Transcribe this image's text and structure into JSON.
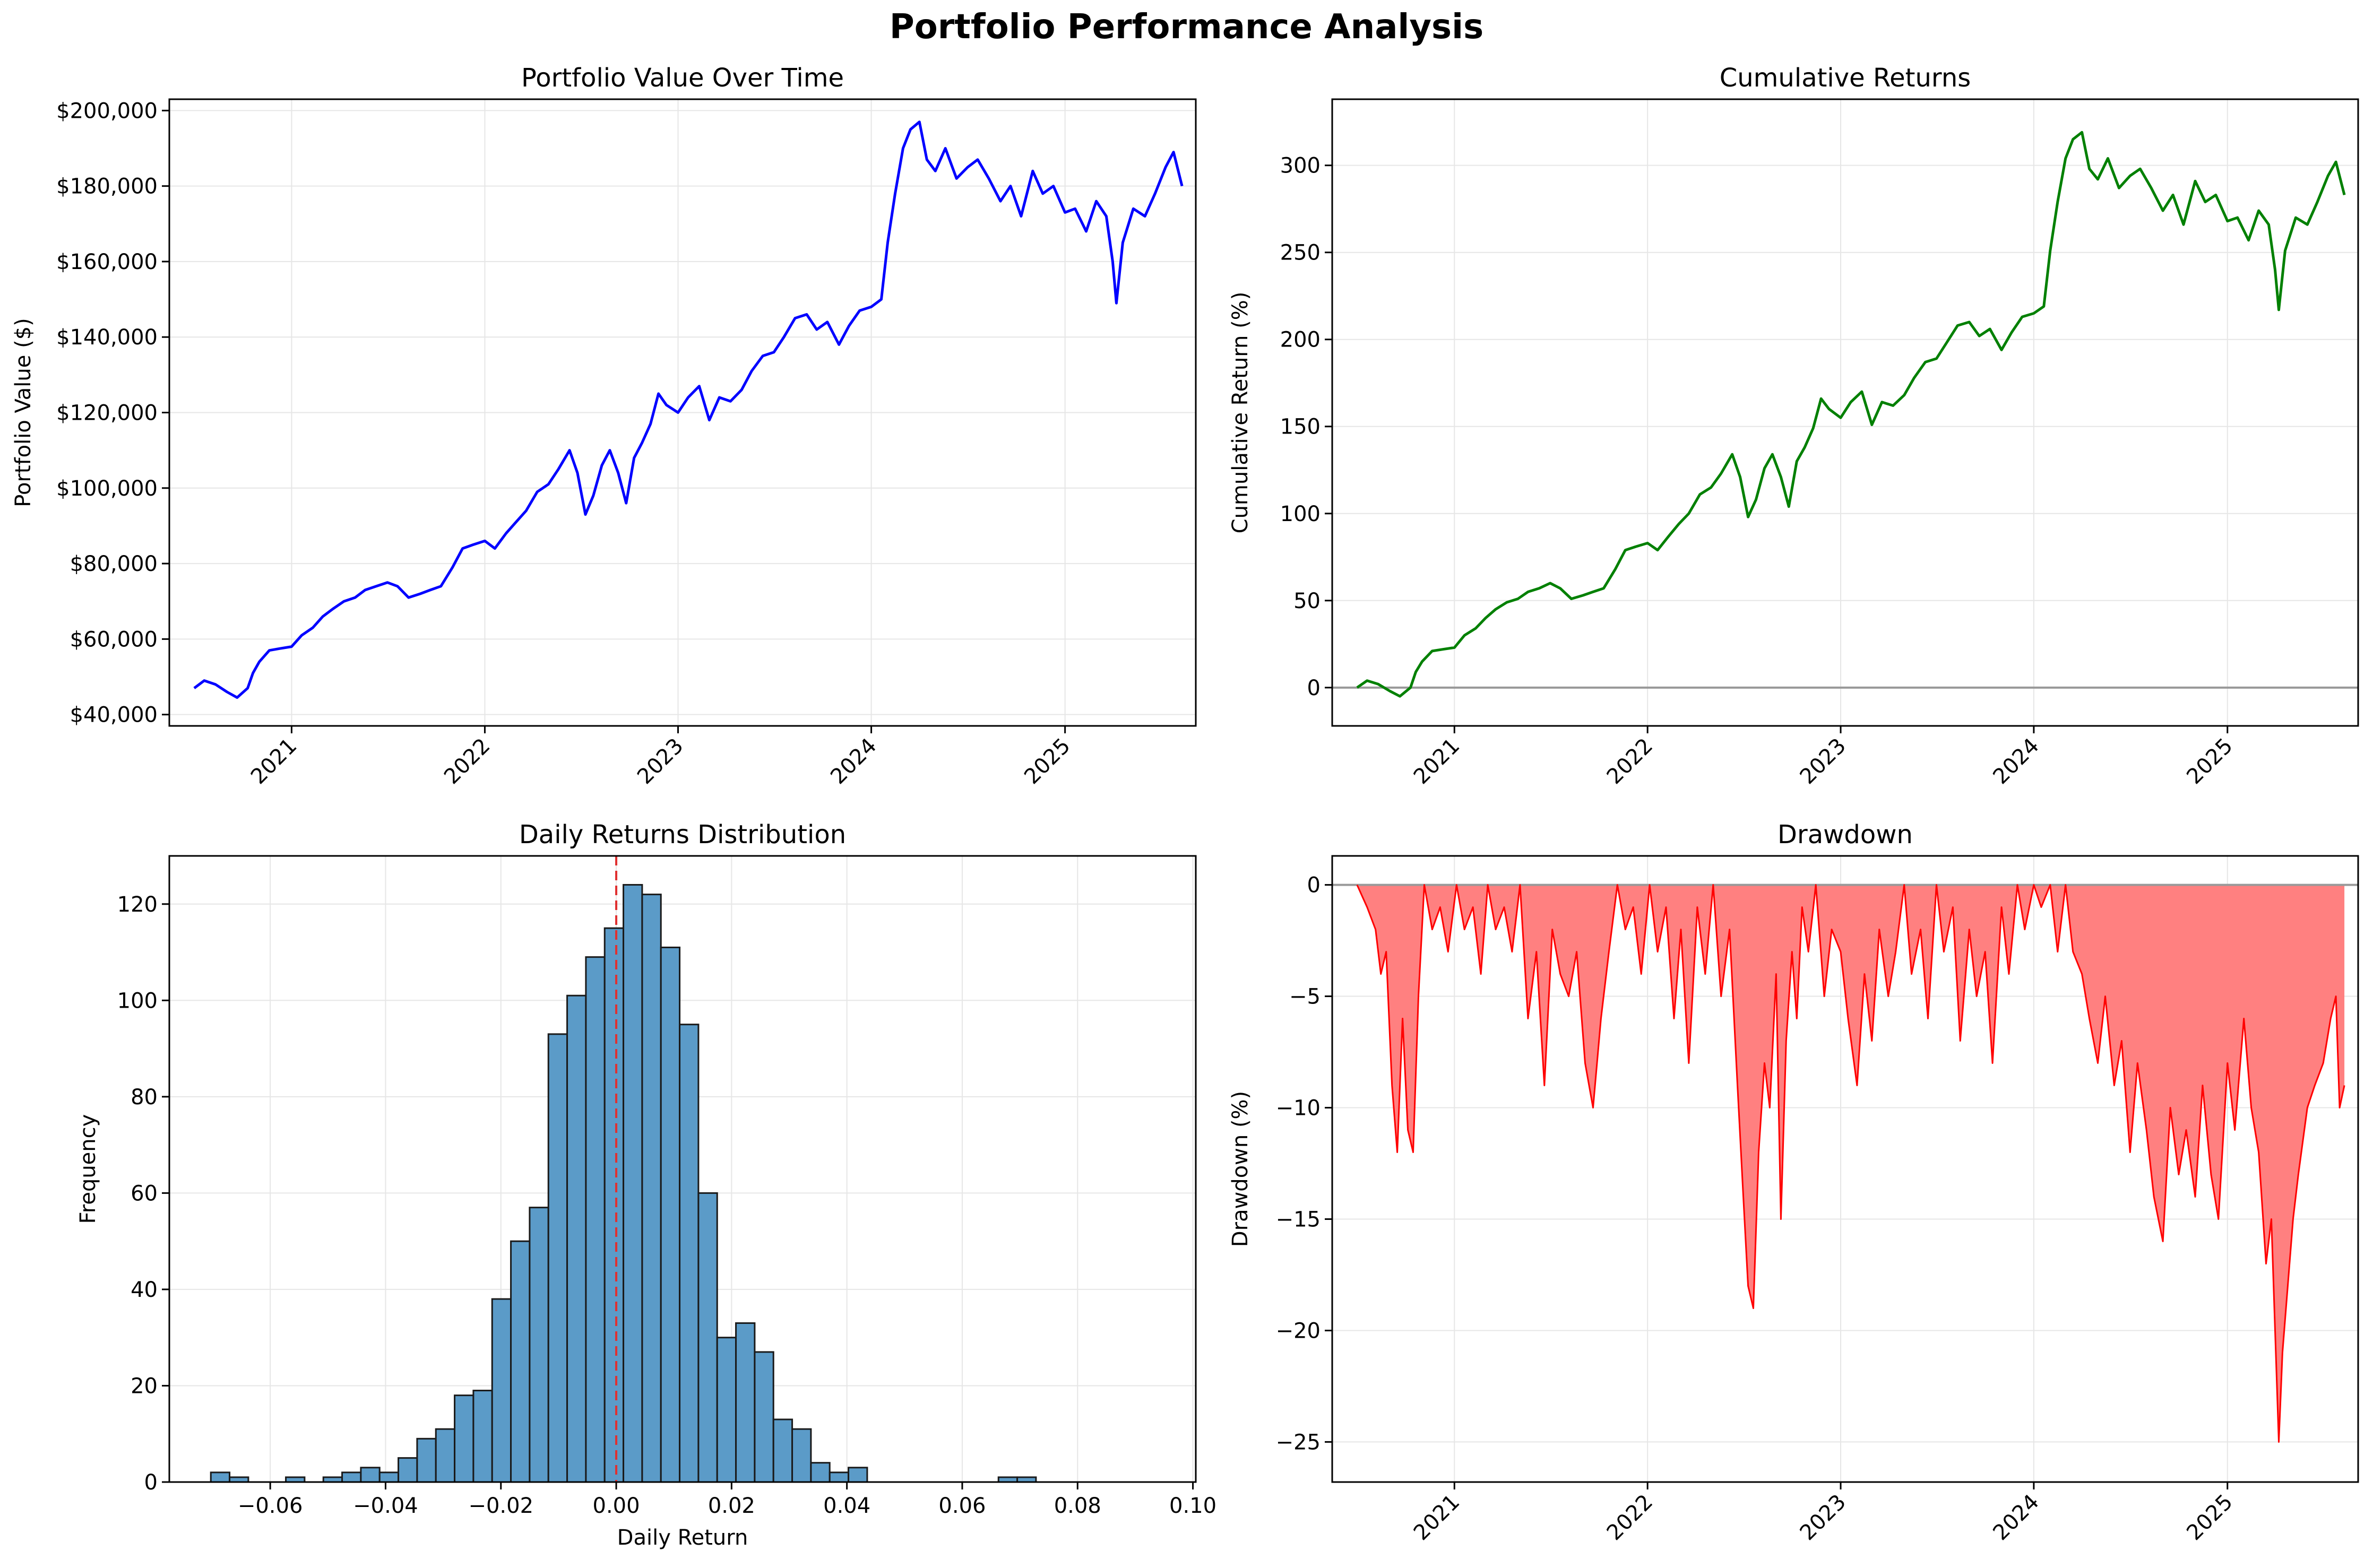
{
  "suptitle": "Portfolio Performance Analysis",
  "chart_data": [
    {
      "id": "value",
      "type": "line",
      "title": "Portfolio Value Over Time",
      "xlabel": "",
      "ylabel": "Portfolio Value ($)",
      "xlim": [
        "2020-05-15",
        "2025-09-05"
      ],
      "ylim": [
        37000,
        203000
      ],
      "yticks": [
        40000,
        60000,
        80000,
        100000,
        120000,
        140000,
        160000,
        180000,
        200000
      ],
      "ytick_labels": [
        "$40,000",
        "$60,000",
        "$80,000",
        "$100,000",
        "$120,000",
        "$140,000",
        "$160,000",
        "$180,000",
        "$200,000"
      ],
      "xticks": [
        "2021-01-01",
        "2022-01-01",
        "2023-01-01",
        "2024-01-01",
        "2025-01-01"
      ],
      "xtick_labels": [
        "2021",
        "2022",
        "2023",
        "2024",
        "2025"
      ],
      "grid": true,
      "color": "#0000ff",
      "series": [
        {
          "x": [
            "2020-07-01",
            "2020-07-20",
            "2020-08-10",
            "2020-09-01",
            "2020-09-20",
            "2020-10-10",
            "2020-10-20",
            "2020-11-01",
            "2020-11-20",
            "2020-12-10",
            "2021-01-01",
            "2021-01-20",
            "2021-02-10",
            "2021-03-01",
            "2021-03-20",
            "2021-04-10",
            "2021-05-01",
            "2021-05-20",
            "2021-06-10",
            "2021-07-01",
            "2021-07-20",
            "2021-08-10",
            "2021-09-01",
            "2021-09-20",
            "2021-10-10",
            "2021-11-01",
            "2021-11-20",
            "2021-12-10",
            "2022-01-01",
            "2022-01-20",
            "2022-02-10",
            "2022-03-01",
            "2022-03-20",
            "2022-04-10",
            "2022-05-01",
            "2022-05-20",
            "2022-06-10",
            "2022-06-25",
            "2022-07-10",
            "2022-07-25",
            "2022-08-10",
            "2022-08-25",
            "2022-09-10",
            "2022-09-25",
            "2022-10-10",
            "2022-10-25",
            "2022-11-10",
            "2022-11-25",
            "2022-12-10",
            "2023-01-01",
            "2023-01-20",
            "2023-02-10",
            "2023-03-01",
            "2023-03-20",
            "2023-04-10",
            "2023-05-01",
            "2023-05-20",
            "2023-06-10",
            "2023-07-01",
            "2023-07-20",
            "2023-08-10",
            "2023-09-01",
            "2023-09-20",
            "2023-10-10",
            "2023-11-01",
            "2023-11-20",
            "2023-12-10",
            "2024-01-01",
            "2024-01-20",
            "2024-02-01",
            "2024-02-15",
            "2024-03-01",
            "2024-03-15",
            "2024-04-01",
            "2024-04-15",
            "2024-05-01",
            "2024-05-20",
            "2024-06-10",
            "2024-07-01",
            "2024-07-20",
            "2024-08-10",
            "2024-09-01",
            "2024-09-20",
            "2024-10-10",
            "2024-11-01",
            "2024-11-20",
            "2024-12-10",
            "2025-01-01",
            "2025-01-20",
            "2025-02-10",
            "2025-03-01",
            "2025-03-20",
            "2025-04-01",
            "2025-04-08",
            "2025-04-20",
            "2025-05-10",
            "2025-06-01",
            "2025-06-20",
            "2025-07-10",
            "2025-07-25",
            "2025-08-10"
          ],
          "y": [
            47000,
            49000,
            48000,
            46000,
            44500,
            47000,
            51000,
            54000,
            57000,
            57500,
            58000,
            61000,
            63000,
            66000,
            68000,
            70000,
            71000,
            73000,
            74000,
            75000,
            74000,
            71000,
            72000,
            73000,
            74000,
            79000,
            84000,
            85000,
            86000,
            84000,
            88000,
            91000,
            94000,
            99000,
            101000,
            105000,
            110000,
            104000,
            93000,
            98000,
            106000,
            110000,
            104000,
            96000,
            108000,
            112000,
            117000,
            125000,
            122000,
            120000,
            124000,
            127000,
            118000,
            124000,
            123000,
            126000,
            131000,
            135000,
            136000,
            140000,
            145000,
            146000,
            142000,
            144000,
            138000,
            143000,
            147000,
            148000,
            150000,
            165000,
            178000,
            190000,
            195000,
            197000,
            187000,
            184000,
            190000,
            182000,
            185000,
            187000,
            182000,
            176000,
            180000,
            172000,
            184000,
            178000,
            180000,
            173000,
            174000,
            168000,
            176000,
            172000,
            160000,
            149000,
            165000,
            174000,
            172000,
            178000,
            185000,
            189000,
            180000
          ]
        }
      ]
    },
    {
      "id": "cumret",
      "type": "line",
      "title": "Cumulative Returns",
      "xlabel": "",
      "ylabel": "Cumulative Return (%)",
      "xlim": [
        "2020-05-15",
        "2025-09-05"
      ],
      "ylim": [
        -22,
        338
      ],
      "yticks": [
        0,
        50,
        100,
        150,
        200,
        250,
        300
      ],
      "ytick_labels": [
        "0",
        "50",
        "100",
        "150",
        "200",
        "250",
        "300"
      ],
      "xticks": [
        "2021-01-01",
        "2022-01-01",
        "2023-01-01",
        "2024-01-01",
        "2025-01-01"
      ],
      "xtick_labels": [
        "2021",
        "2022",
        "2023",
        "2024",
        "2025"
      ],
      "grid": true,
      "color": "#008000",
      "hline": {
        "y": 0,
        "color": "#999999"
      },
      "series": [
        {
          "x": [
            "2020-07-01",
            "2020-07-20",
            "2020-08-10",
            "2020-09-01",
            "2020-09-20",
            "2020-10-10",
            "2020-10-20",
            "2020-11-01",
            "2020-11-20",
            "2020-12-10",
            "2021-01-01",
            "2021-01-20",
            "2021-02-10",
            "2021-03-01",
            "2021-03-20",
            "2021-04-10",
            "2021-05-01",
            "2021-05-20",
            "2021-06-10",
            "2021-07-01",
            "2021-07-20",
            "2021-08-10",
            "2021-09-01",
            "2021-09-20",
            "2021-10-10",
            "2021-11-01",
            "2021-11-20",
            "2021-12-10",
            "2022-01-01",
            "2022-01-20",
            "2022-02-10",
            "2022-03-01",
            "2022-03-20",
            "2022-04-10",
            "2022-05-01",
            "2022-05-20",
            "2022-06-10",
            "2022-06-25",
            "2022-07-10",
            "2022-07-25",
            "2022-08-10",
            "2022-08-25",
            "2022-09-10",
            "2022-09-25",
            "2022-10-10",
            "2022-10-25",
            "2022-11-10",
            "2022-11-25",
            "2022-12-10",
            "2023-01-01",
            "2023-01-20",
            "2023-02-10",
            "2023-03-01",
            "2023-03-20",
            "2023-04-10",
            "2023-05-01",
            "2023-05-20",
            "2023-06-10",
            "2023-07-01",
            "2023-07-20",
            "2023-08-10",
            "2023-09-01",
            "2023-09-20",
            "2023-10-10",
            "2023-11-01",
            "2023-11-20",
            "2023-12-10",
            "2024-01-01",
            "2024-01-20",
            "2024-02-01",
            "2024-02-15",
            "2024-03-01",
            "2024-03-15",
            "2024-04-01",
            "2024-04-15",
            "2024-05-01",
            "2024-05-20",
            "2024-06-10",
            "2024-07-01",
            "2024-07-20",
            "2024-08-10",
            "2024-09-01",
            "2024-09-20",
            "2024-10-10",
            "2024-11-01",
            "2024-11-20",
            "2024-12-10",
            "2025-01-01",
            "2025-01-20",
            "2025-02-10",
            "2025-03-01",
            "2025-03-20",
            "2025-04-01",
            "2025-04-08",
            "2025-04-20",
            "2025-05-10",
            "2025-06-01",
            "2025-06-20",
            "2025-07-10",
            "2025-07-25",
            "2025-08-10"
          ],
          "y": [
            0,
            4,
            2,
            -2,
            -5,
            0,
            9,
            15,
            21,
            22,
            23,
            30,
            34,
            40,
            45,
            49,
            51,
            55,
            57,
            60,
            57,
            51,
            53,
            55,
            57,
            68,
            79,
            81,
            83,
            79,
            87,
            94,
            100,
            111,
            115,
            123,
            134,
            121,
            98,
            108,
            126,
            134,
            121,
            104,
            130,
            138,
            149,
            166,
            160,
            155,
            164,
            170,
            151,
            164,
            162,
            168,
            178,
            187,
            189,
            198,
            208,
            210,
            202,
            206,
            194,
            204,
            213,
            215,
            219,
            251,
            279,
            304,
            315,
            319,
            298,
            292,
            304,
            287,
            294,
            298,
            287,
            274,
            283,
            266,
            291,
            279,
            283,
            268,
            270,
            257,
            274,
            266,
            240,
            217,
            251,
            270,
            266,
            279,
            294,
            302,
            283
          ]
        }
      ]
    },
    {
      "id": "hist",
      "type": "bar",
      "title": "Daily Returns Distribution",
      "xlabel": "Daily Return",
      "ylabel": "Frequency",
      "xlim": [
        -0.0775,
        0.1005
      ],
      "ylim": [
        0,
        130
      ],
      "xticks": [
        -0.06,
        -0.04,
        -0.02,
        0.0,
        0.02,
        0.04,
        0.06,
        0.08,
        0.1
      ],
      "xtick_labels": [
        "−0.06",
        "−0.04",
        "−0.02",
        "0.00",
        "0.02",
        "0.04",
        "0.06",
        "0.08",
        "0.10"
      ],
      "yticks": [
        0,
        20,
        40,
        60,
        80,
        100,
        120
      ],
      "ytick_labels": [
        "0",
        "20",
        "40",
        "60",
        "80",
        "100",
        "120"
      ],
      "grid": true,
      "color": "#5b9bc8",
      "edgecolor": "#1a1a1a",
      "vline": {
        "x": 0.0,
        "color": "#e03030",
        "style": "dashed"
      },
      "bin_start": -0.0703,
      "bin_width": 0.003252,
      "values": [
        2,
        1,
        0,
        0,
        1,
        0,
        1,
        2,
        3,
        2,
        5,
        9,
        11,
        18,
        19,
        38,
        50,
        57,
        93,
        101,
        109,
        115,
        124,
        122,
        111,
        95,
        60,
        30,
        33,
        27,
        13,
        11,
        4,
        2,
        3,
        0,
        0,
        0,
        0,
        0,
        0,
        0,
        1,
        1,
        0,
        0,
        0,
        0,
        0,
        0
      ]
    },
    {
      "id": "drawdown",
      "type": "area",
      "title": "Drawdown",
      "xlabel": "",
      "ylabel": "Drawdown (%)",
      "xlim": [
        "2020-05-15",
        "2025-09-05"
      ],
      "ylim": [
        -26.8,
        1.3
      ],
      "yticks": [
        0,
        -5,
        -10,
        -15,
        -20,
        -25
      ],
      "ytick_labels": [
        "0",
        "−5",
        "−10",
        "−15",
        "−20",
        "−25"
      ],
      "xticks": [
        "2021-01-01",
        "2022-01-01",
        "2023-01-01",
        "2024-01-01",
        "2025-01-01"
      ],
      "xtick_labels": [
        "2021",
        "2022",
        "2023",
        "2024",
        "2025"
      ],
      "grid": true,
      "color": "#ff0000",
      "fill": "#ff8080",
      "hline": {
        "y": 0,
        "color": "#999999"
      },
      "series": [
        {
          "x": [
            "2020-07-01",
            "2020-07-20",
            "2020-08-05",
            "2020-08-15",
            "2020-08-25",
            "2020-09-05",
            "2020-09-15",
            "2020-09-25",
            "2020-10-05",
            "2020-10-15",
            "2020-10-25",
            "2020-11-05",
            "2020-11-20",
            "2020-12-05",
            "2020-12-20",
            "2021-01-05",
            "2021-01-20",
            "2021-02-05",
            "2021-02-20",
            "2021-03-05",
            "2021-03-20",
            "2021-04-05",
            "2021-04-20",
            "2021-05-05",
            "2021-05-20",
            "2021-06-05",
            "2021-06-20",
            "2021-07-05",
            "2021-07-20",
            "2021-08-05",
            "2021-08-20",
            "2021-09-05",
            "2021-09-20",
            "2021-10-05",
            "2021-10-20",
            "2021-11-05",
            "2021-11-20",
            "2021-12-05",
            "2021-12-20",
            "2022-01-05",
            "2022-01-20",
            "2022-02-05",
            "2022-02-20",
            "2022-03-05",
            "2022-03-20",
            "2022-04-05",
            "2022-04-20",
            "2022-05-05",
            "2022-05-20",
            "2022-06-05",
            "2022-06-20",
            "2022-07-01",
            "2022-07-10",
            "2022-07-20",
            "2022-07-30",
            "2022-08-10",
            "2022-08-20",
            "2022-09-01",
            "2022-09-10",
            "2022-09-20",
            "2022-10-01",
            "2022-10-10",
            "2022-10-20",
            "2022-11-01",
            "2022-11-15",
            "2022-12-01",
            "2022-12-15",
            "2023-01-01",
            "2023-01-15",
            "2023-02-01",
            "2023-02-15",
            "2023-03-01",
            "2023-03-15",
            "2023-04-01",
            "2023-04-15",
            "2023-05-01",
            "2023-05-15",
            "2023-06-01",
            "2023-06-15",
            "2023-07-01",
            "2023-07-15",
            "2023-08-01",
            "2023-08-15",
            "2023-09-01",
            "2023-09-15",
            "2023-10-01",
            "2023-10-15",
            "2023-11-01",
            "2023-11-15",
            "2023-12-01",
            "2023-12-15",
            "2024-01-01",
            "2024-01-15",
            "2024-02-01",
            "2024-02-15",
            "2024-03-01",
            "2024-03-15",
            "2024-04-01",
            "2024-04-15",
            "2024-05-01",
            "2024-05-15",
            "2024-06-01",
            "2024-06-15",
            "2024-07-01",
            "2024-07-15",
            "2024-08-01",
            "2024-08-15",
            "2024-09-01",
            "2024-09-15",
            "2024-10-01",
            "2024-10-15",
            "2024-11-01",
            "2024-11-15",
            "2024-12-01",
            "2024-12-15",
            "2025-01-01",
            "2025-01-15",
            "2025-02-01",
            "2025-02-15",
            "2025-03-01",
            "2025-03-15",
            "2025-03-25",
            "2025-04-01",
            "2025-04-08",
            "2025-04-15",
            "2025-04-25",
            "2025-05-05",
            "2025-05-15",
            "2025-06-01",
            "2025-06-15",
            "2025-07-01",
            "2025-07-15",
            "2025-07-25",
            "2025-08-01",
            "2025-08-10"
          ],
          "y": [
            0,
            -1,
            -2,
            -4,
            -3,
            -9,
            -12,
            -6,
            -11,
            -12,
            -5,
            0,
            -2,
            -1,
            -3,
            0,
            -2,
            -1,
            -4,
            0,
            -2,
            -1,
            -3,
            0,
            -6,
            -3,
            -9,
            -2,
            -4,
            -5,
            -3,
            -8,
            -10,
            -6,
            -3,
            0,
            -2,
            -1,
            -4,
            0,
            -3,
            -1,
            -6,
            -2,
            -8,
            -1,
            -4,
            0,
            -5,
            -2,
            -9,
            -14,
            -18,
            -19,
            -12,
            -8,
            -10,
            -4,
            -15,
            -7,
            -3,
            -6,
            -1,
            -3,
            0,
            -5,
            -2,
            -3,
            -6,
            -9,
            -4,
            -7,
            -2,
            -5,
            -3,
            0,
            -4,
            -2,
            -6,
            0,
            -3,
            -1,
            -7,
            -2,
            -5,
            -3,
            -8,
            -1,
            -4,
            0,
            -2,
            0,
            -1,
            0,
            -3,
            0,
            -3,
            -4,
            -6,
            -8,
            -5,
            -9,
            -7,
            -12,
            -8,
            -11,
            -14,
            -16,
            -10,
            -13,
            -11,
            -14,
            -9,
            -13,
            -15,
            -8,
            -11,
            -6,
            -10,
            -12,
            -17,
            -15,
            -20,
            -25,
            -21,
            -18,
            -15,
            -13,
            -10,
            -9,
            -8,
            -6,
            -5,
            -10,
            -9
          ]
        }
      ]
    }
  ]
}
